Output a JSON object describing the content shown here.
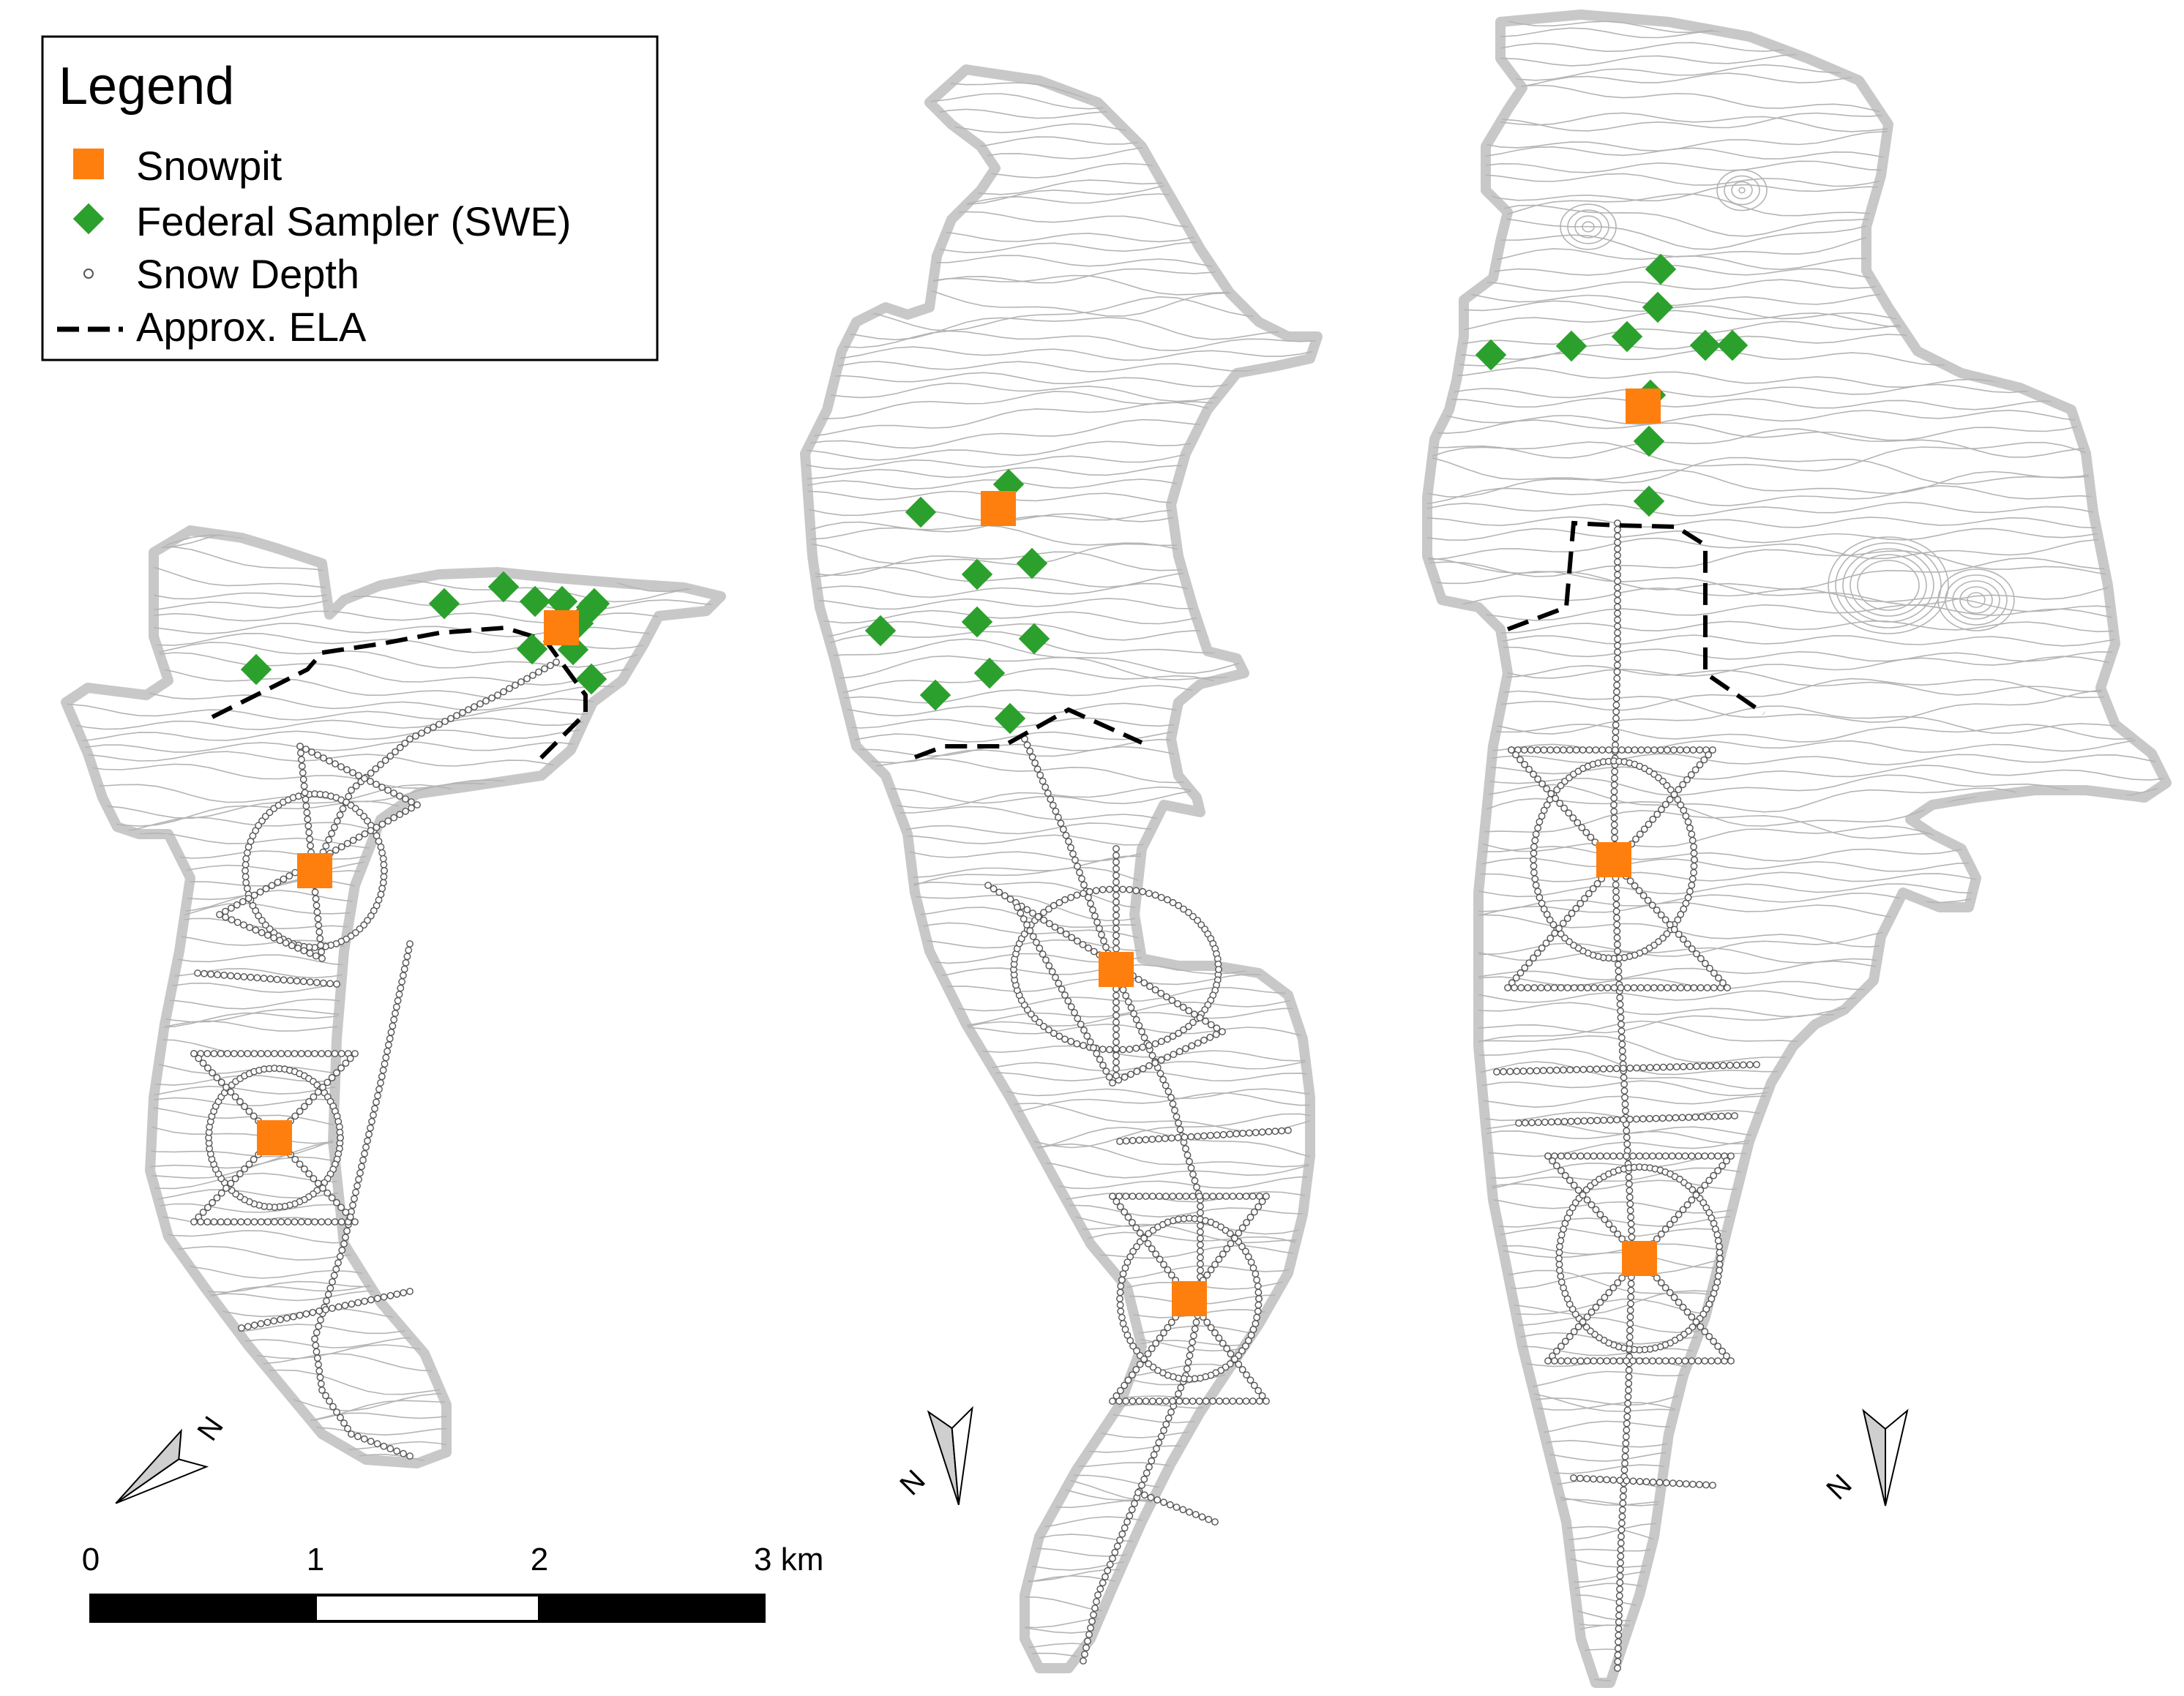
{
  "legend": {
    "title": "Legend",
    "items": [
      {
        "label": "Snowpit",
        "symbol": "square",
        "color": "#ff7f0e"
      },
      {
        "label": "Federal Sampler (SWE)",
        "symbol": "diamond",
        "color": "#2ca02c"
      },
      {
        "label": "Snow Depth",
        "symbol": "circle",
        "color": "#ffffff"
      },
      {
        "label": "Approx. ELA",
        "symbol": "dashed-line",
        "color": "#000000"
      }
    ]
  },
  "scale_bar": {
    "labels": [
      "0",
      "1",
      "2",
      "3 km"
    ]
  },
  "north_arrow": {
    "label": "N"
  },
  "colors": {
    "outline": "#c8c8c8",
    "contour": "#b4b4b4",
    "snowpit": "#ff7f0e",
    "sampler": "#2ca02c",
    "ela": "#000000"
  }
}
